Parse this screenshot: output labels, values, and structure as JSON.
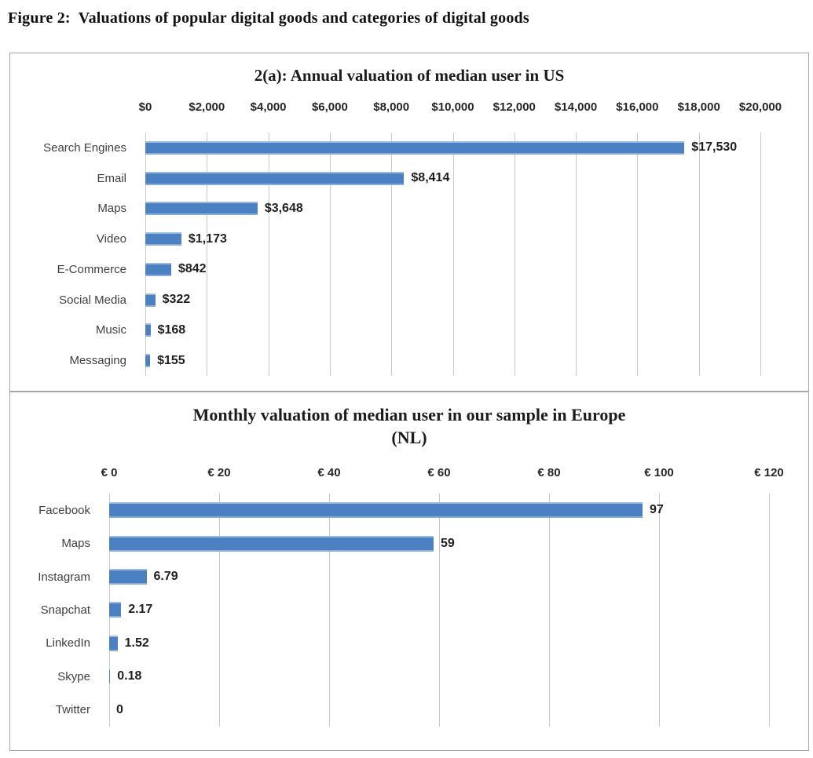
{
  "figure_title": "Figure 2:  Valuations of popular digital goods and categories of digital goods",
  "colors": {
    "bar": "#4b80c3",
    "gridline": "#c9c9c9",
    "chart_border": "#a6a6a6",
    "title_text": "#1c1c1c",
    "category_text": "#3f3f3f",
    "data_label_text": "#1f1f1f"
  },
  "chart_data": [
    {
      "type": "bar",
      "orientation": "horizontal",
      "title": "2(a): Annual valuation of median user in US",
      "categories": [
        "Search Engines",
        "Email",
        "Maps",
        "Video",
        "E-Commerce",
        "Social Media",
        "Music",
        "Messaging"
      ],
      "values": [
        17530,
        8414,
        3648,
        1173,
        842,
        322,
        168,
        155
      ],
      "data_labels": [
        "$17,530",
        "$8,414",
        "$3,648",
        "$1,173",
        "$842",
        "$322",
        "$168",
        "$155"
      ],
      "x_ticks": [
        "$0",
        "$2,000",
        "$4,000",
        "$6,000",
        "$8,000",
        "$10,000",
        "$12,000",
        "$14,000",
        "$16,000",
        "$18,000",
        "$20,000"
      ],
      "xlim": [
        0,
        20000
      ],
      "grid": true,
      "axis_position": "top",
      "legend": "none"
    },
    {
      "type": "bar",
      "orientation": "horizontal",
      "title": "Monthly valuation of median user in our sample in Europe (NL)",
      "title_line1": "Monthly valuation of median user in our sample in Europe",
      "title_line2": "(NL)",
      "categories": [
        "Facebook",
        "Maps",
        "Instagram",
        "Snapchat",
        "LinkedIn",
        "Skype",
        "Twitter"
      ],
      "values": [
        97,
        59,
        6.79,
        2.17,
        1.52,
        0.18,
        0
      ],
      "data_labels": [
        "97",
        "59",
        "6.79",
        "2.17",
        "1.52",
        "0.18",
        "0"
      ],
      "x_ticks": [
        "€ 0",
        "€ 20",
        "€ 40",
        "€ 60",
        "€ 80",
        "€ 100",
        "€ 120"
      ],
      "xlim": [
        0,
        120
      ],
      "grid": true,
      "axis_position": "top",
      "legend": "none"
    }
  ]
}
